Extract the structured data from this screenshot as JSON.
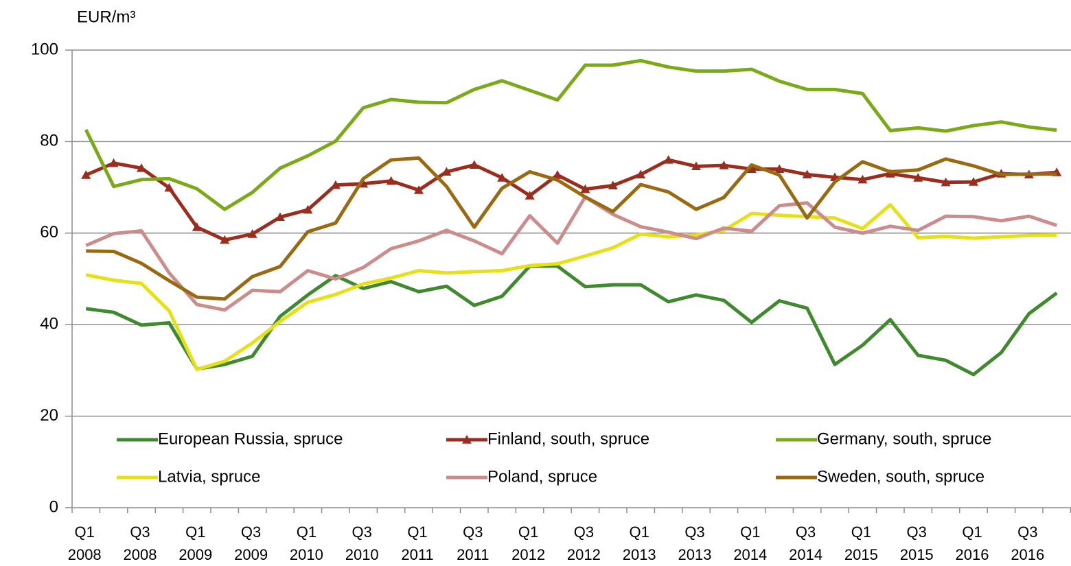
{
  "chart_data": {
    "type": "line",
    "y_label": "EUR/m³",
    "categories": [
      "Q1 2008",
      null,
      "Q3 2008",
      null,
      "Q1 2009",
      null,
      "Q3 2009",
      null,
      "Q1 2010",
      null,
      "Q3 2010",
      null,
      "Q1 2011",
      null,
      "Q3 2011",
      null,
      "Q1 2012",
      null,
      "Q3 2012",
      null,
      "Q1 2013",
      null,
      "Q3 2013",
      null,
      "Q1 2014",
      null,
      "Q3 2014",
      null,
      "Q1 2015",
      null,
      "Q3 2015",
      null,
      "Q1 2016",
      null,
      "Q3 2016",
      null
    ],
    "ylim": [
      0,
      100
    ],
    "yticks": [
      0,
      20,
      40,
      60,
      80,
      100
    ],
    "grid": true,
    "series": [
      {
        "name": "European Russia, spruce",
        "color": "#3f8a2e",
        "values": [
          43.5,
          42.7,
          39.9,
          40.4,
          30.3,
          31.3,
          33.1,
          41.8,
          46.5,
          50.7,
          47.9,
          49.4,
          47.2,
          48.4,
          44.2,
          46.2,
          52.8,
          52.8,
          48.3,
          48.7,
          48.7,
          45.0,
          46.5,
          45.3,
          40.5,
          45.2,
          43.6,
          31.3,
          35.5,
          41.1,
          33.3,
          32.2,
          29.1,
          33.9,
          42.4,
          46.9
        ]
      },
      {
        "name": "Finland, south, spruce",
        "color": "#9b2d1f",
        "marker": "triangle",
        "values": [
          72.7,
          75.3,
          74.2,
          69.9,
          61.3,
          58.5,
          59.8,
          63.5,
          65.1,
          70.5,
          70.8,
          71.4,
          69.4,
          73.4,
          74.9,
          72.1,
          68.2,
          72.7,
          69.6,
          70.4,
          72.8,
          76.0,
          74.6,
          74.8,
          74.0,
          74.0,
          72.8,
          72.2,
          71.7,
          73.0,
          72.1,
          71.1,
          71.2,
          73.0,
          72.8,
          73.3
        ]
      },
      {
        "name": "Germany, south, spruce",
        "color": "#7aaa18",
        "values": [
          82.6,
          70.2,
          71.7,
          71.9,
          69.7,
          65.2,
          68.9,
          74.2,
          76.9,
          80.1,
          87.4,
          89.2,
          88.6,
          88.5,
          91.4,
          93.3,
          91.2,
          89.1,
          96.7,
          96.7,
          97.7,
          96.3,
          95.4,
          95.4,
          95.8,
          93.2,
          91.4,
          91.4,
          90.5,
          82.4,
          83.0,
          82.3,
          83.5,
          84.3,
          83.2,
          82.5
        ]
      },
      {
        "name": "Latvia, spruce",
        "color": "#e5e01a",
        "values": [
          50.9,
          49.7,
          49.0,
          43.0,
          30.2,
          32.0,
          36.0,
          40.7,
          44.9,
          46.6,
          48.9,
          50.2,
          51.8,
          51.3,
          51.6,
          51.8,
          52.9,
          53.3,
          55.0,
          56.8,
          59.8,
          59.2,
          59.6,
          60.6,
          64.3,
          63.9,
          63.6,
          63.3,
          61.0,
          66.2,
          59.0,
          59.3,
          58.9,
          59.2,
          59.5,
          59.6
        ]
      },
      {
        "name": "Poland, spruce",
        "color": "#cc8c8c",
        "values": [
          57.3,
          59.9,
          60.5,
          51.3,
          44.4,
          43.2,
          47.5,
          47.2,
          51.8,
          50.0,
          52.5,
          56.6,
          58.3,
          60.6,
          58.3,
          55.5,
          63.8,
          57.8,
          67.9,
          64.1,
          61.4,
          60.2,
          58.8,
          61.1,
          60.4,
          66.0,
          66.6,
          61.3,
          60.0,
          61.5,
          60.6,
          63.7,
          63.6,
          62.7,
          63.7,
          61.7
        ]
      },
      {
        "name": "Sweden, south, spruce",
        "color": "#9a6a13",
        "values": [
          56.1,
          56.0,
          53.4,
          49.6,
          46.0,
          45.6,
          50.5,
          52.7,
          60.3,
          62.2,
          71.9,
          76.0,
          76.4,
          70.2,
          61.3,
          69.8,
          73.4,
          71.6,
          67.9,
          64.7,
          70.6,
          69.0,
          65.2,
          67.8,
          74.9,
          72.7,
          63.3,
          71.2,
          75.6,
          73.4,
          73.8,
          76.2,
          74.7,
          72.8,
          72.9,
          72.9
        ]
      }
    ]
  }
}
